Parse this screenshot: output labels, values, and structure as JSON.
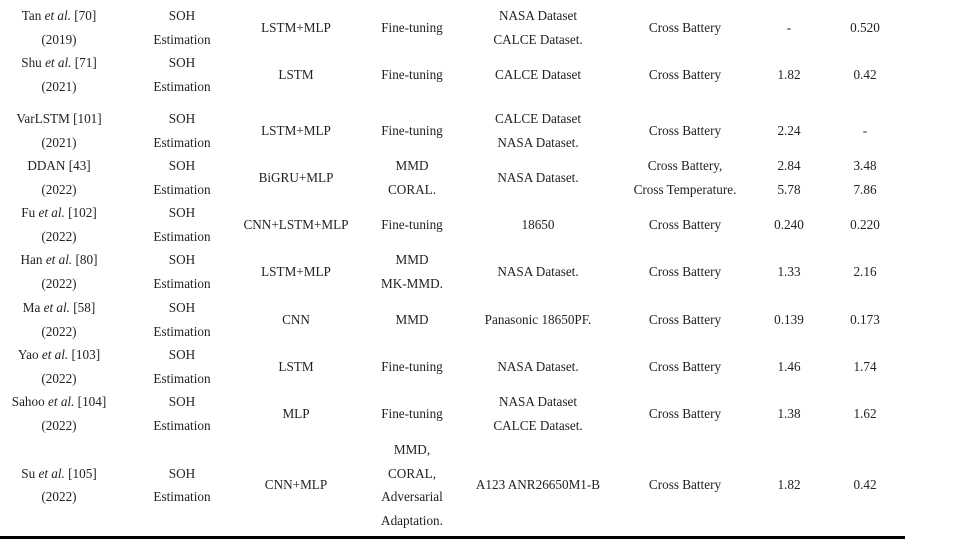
{
  "rows": [
    {
      "ref": [
        {
          "author": "Tan ",
          "etal": "et al.",
          "cite": " [70]"
        },
        {
          "text": "(2019)"
        }
      ],
      "task": [
        "SOH",
        "Estimation"
      ],
      "model": [
        "LSTM+MLP"
      ],
      "tl": [
        "Fine-tuning"
      ],
      "dataset": [
        "NASA Dataset",
        "CALCE Dataset."
      ],
      "scenario": [
        "Cross Battery"
      ],
      "m1": [
        "-"
      ],
      "m2": [
        "0.520"
      ]
    },
    {
      "ref": [
        {
          "author": "Shu ",
          "etal": "et al.",
          "cite": " [71]"
        },
        {
          "text": "(2021)"
        }
      ],
      "task": [
        "SOH",
        "Estimation"
      ],
      "model": [
        "LSTM"
      ],
      "tl": [
        "Fine-tuning"
      ],
      "dataset": [
        "CALCE Dataset"
      ],
      "scenario": [
        "Cross Battery"
      ],
      "m1": [
        "1.82"
      ],
      "m2": [
        "0.42"
      ]
    },
    {
      "ref": [
        {
          "text": "VarLSTM [101]"
        },
        {
          "text": "(2021)"
        }
      ],
      "task": [
        "SOH",
        "Estimation"
      ],
      "model": [
        "LSTM+MLP"
      ],
      "tl": [
        "Fine-tuning"
      ],
      "dataset": [
        "CALCE Dataset",
        "NASA Dataset."
      ],
      "scenario": [
        "Cross Battery"
      ],
      "m1": [
        "2.24"
      ],
      "m2": [
        "-"
      ]
    },
    {
      "ref": [
        {
          "text": "DDAN [43]"
        },
        {
          "text": "(2022)"
        }
      ],
      "task": [
        "SOH",
        "Estimation"
      ],
      "model": [
        "BiGRU+MLP"
      ],
      "tl": [
        "MMD",
        "CORAL."
      ],
      "dataset": [
        "NASA Dataset."
      ],
      "scenario": [
        "Cross Battery,",
        "Cross Temperature."
      ],
      "m1": [
        "2.84",
        "5.78"
      ],
      "m2": [
        "3.48",
        "7.86"
      ]
    },
    {
      "ref": [
        {
          "author": "Fu ",
          "etal": "et al.",
          "cite": " [102]"
        },
        {
          "text": "(2022)"
        }
      ],
      "task": [
        "SOH",
        "Estimation"
      ],
      "model": [
        "CNN+LSTM+MLP"
      ],
      "tl": [
        "Fine-tuning"
      ],
      "dataset": [
        "18650"
      ],
      "scenario": [
        "Cross Battery"
      ],
      "m1": [
        "0.240"
      ],
      "m2": [
        "0.220"
      ]
    },
    {
      "ref": [
        {
          "author": "Han ",
          "etal": "et al.",
          "cite": " [80]"
        },
        {
          "text": "(2022)"
        }
      ],
      "task": [
        "SOH",
        "Estimation"
      ],
      "model": [
        "LSTM+MLP"
      ],
      "tl": [
        "MMD",
        "MK-MMD."
      ],
      "dataset": [
        "NASA Dataset."
      ],
      "scenario": [
        "Cross Battery"
      ],
      "m1": [
        "1.33"
      ],
      "m2": [
        "2.16"
      ]
    },
    {
      "ref": [
        {
          "author": "Ma ",
          "etal": "et al.",
          "cite": " [58]"
        },
        {
          "text": "(2022)"
        }
      ],
      "task": [
        "SOH",
        "Estimation"
      ],
      "model": [
        "CNN"
      ],
      "tl": [
        "MMD"
      ],
      "dataset": [
        "Panasonic 18650PF."
      ],
      "scenario": [
        "Cross Battery"
      ],
      "m1": [
        "0.139"
      ],
      "m2": [
        "0.173"
      ]
    },
    {
      "ref": [
        {
          "author": "Yao ",
          "etal": "et al.",
          "cite": " [103]"
        },
        {
          "text": "(2022)"
        }
      ],
      "task": [
        "SOH",
        "Estimation"
      ],
      "model": [
        "LSTM"
      ],
      "tl": [
        "Fine-tuning"
      ],
      "dataset": [
        "NASA Dataset."
      ],
      "scenario": [
        "Cross Battery"
      ],
      "m1": [
        "1.46"
      ],
      "m2": [
        "1.74"
      ]
    },
    {
      "ref": [
        {
          "author": "Sahoo ",
          "etal": "et al.",
          "cite": " [104]"
        },
        {
          "text": "(2022)"
        }
      ],
      "task": [
        "SOH",
        "Estimation"
      ],
      "model": [
        "MLP"
      ],
      "tl": [
        "Fine-tuning"
      ],
      "dataset": [
        "NASA Dataset",
        "CALCE Dataset."
      ],
      "scenario": [
        "Cross Battery"
      ],
      "m1": [
        "1.38"
      ],
      "m2": [
        "1.62"
      ]
    },
    {
      "ref": [
        {
          "author": "Su ",
          "etal": "et al.",
          "cite": " [105]"
        },
        {
          "text": "(2022)"
        }
      ],
      "task": [
        "SOH",
        "Estimation"
      ],
      "model": [
        "CNN+MLP"
      ],
      "tl": [
        "MMD,",
        "CORAL,",
        "Adversarial",
        "Adaptation."
      ],
      "dataset": [
        "A123 ANR26650M1-B"
      ],
      "scenario": [
        "Cross Battery"
      ],
      "m1": [
        "1.82"
      ],
      "m2": [
        "0.42"
      ]
    }
  ]
}
